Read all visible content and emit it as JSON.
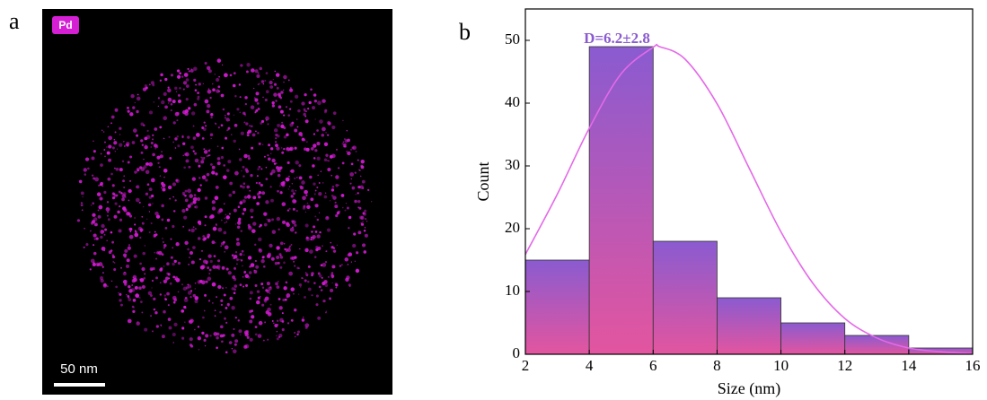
{
  "panel_a": {
    "label": "a",
    "badge": "Pd",
    "scale_bar": "50 nm"
  },
  "panel_b": {
    "label": "b"
  },
  "chart_data": {
    "type": "histogram",
    "bins": [
      2,
      4,
      6,
      8,
      10,
      12,
      14,
      16
    ],
    "values": [
      15,
      49,
      18,
      9,
      5,
      3,
      1
    ],
    "colors": [
      "#8a5bd0",
      "#e3559f"
    ],
    "xlim": [
      2,
      16
    ],
    "ylim": [
      0,
      55
    ],
    "xticks": [
      2,
      4,
      6,
      8,
      10,
      12,
      14,
      16
    ],
    "yticks": [
      0,
      10,
      20,
      30,
      40,
      50
    ],
    "xlabel": "Size (nm)",
    "ylabel": "Count",
    "annotation": "D=6.2±2.8",
    "curve": {
      "color": "#e46ae8",
      "x": [
        2,
        3,
        4,
        5,
        6,
        6.2,
        7,
        8,
        9,
        10,
        11,
        12,
        13,
        14,
        15,
        16
      ],
      "values": [
        15.9,
        25.5,
        36.0,
        44.7,
        48.9,
        49,
        47.0,
        39.9,
        29.7,
        19.5,
        11.3,
        5.7,
        2.6,
        1.0,
        0.4,
        0.1
      ]
    }
  }
}
